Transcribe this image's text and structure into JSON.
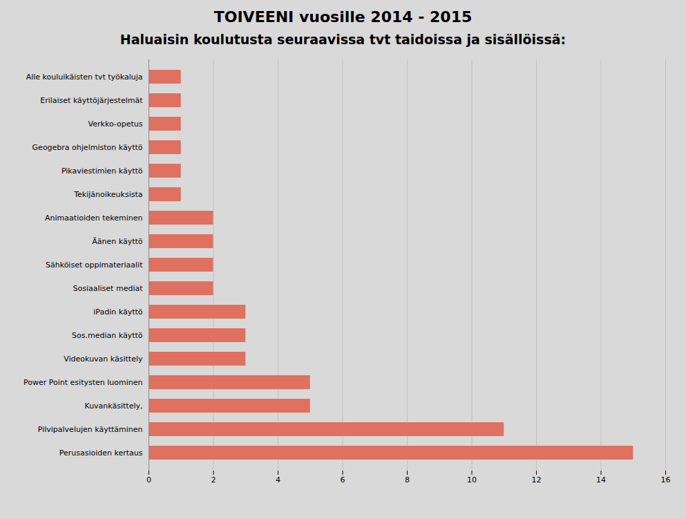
{
  "chart_data": {
    "type": "bar",
    "title": "TOIVEENI vuosille 2014 - 2015",
    "subtitle": "Haluaisin koulutusta seuraavissa tvt taidoissa ja sisällöissä:",
    "orientation": "horizontal",
    "categories": [
      "Perusasioiden kertaus",
      "Pilvipalvelujen käyttäminen",
      "Kuvankäsittely,",
      "Power Point esitysten luominen",
      "Videokuvan käsittely",
      "Sos.median käyttö",
      "iPadin käyttö",
      "Sosiaaliset mediat",
      "Sähköiset oppimateriaalit",
      "Äänen käyttö",
      "Animaatioiden tekeminen",
      "Tekijänoikeuksista",
      "Pikaviestimien käyttö",
      "Geogebra ohjelmiston käyttö",
      "Verkko-opetus",
      "Erilaiset käyttöjärjestelmät",
      "Alle kouluikäisten tvt työkaluja"
    ],
    "values": [
      15,
      11,
      5,
      5,
      3,
      3,
      3,
      2,
      2,
      2,
      2,
      1,
      1,
      1,
      1,
      1,
      1
    ],
    "color": "#e07060",
    "xlim": [
      0,
      16
    ],
    "xticks": [
      0,
      2,
      4,
      6,
      8,
      10,
      12,
      14,
      16
    ],
    "grid": true
  }
}
